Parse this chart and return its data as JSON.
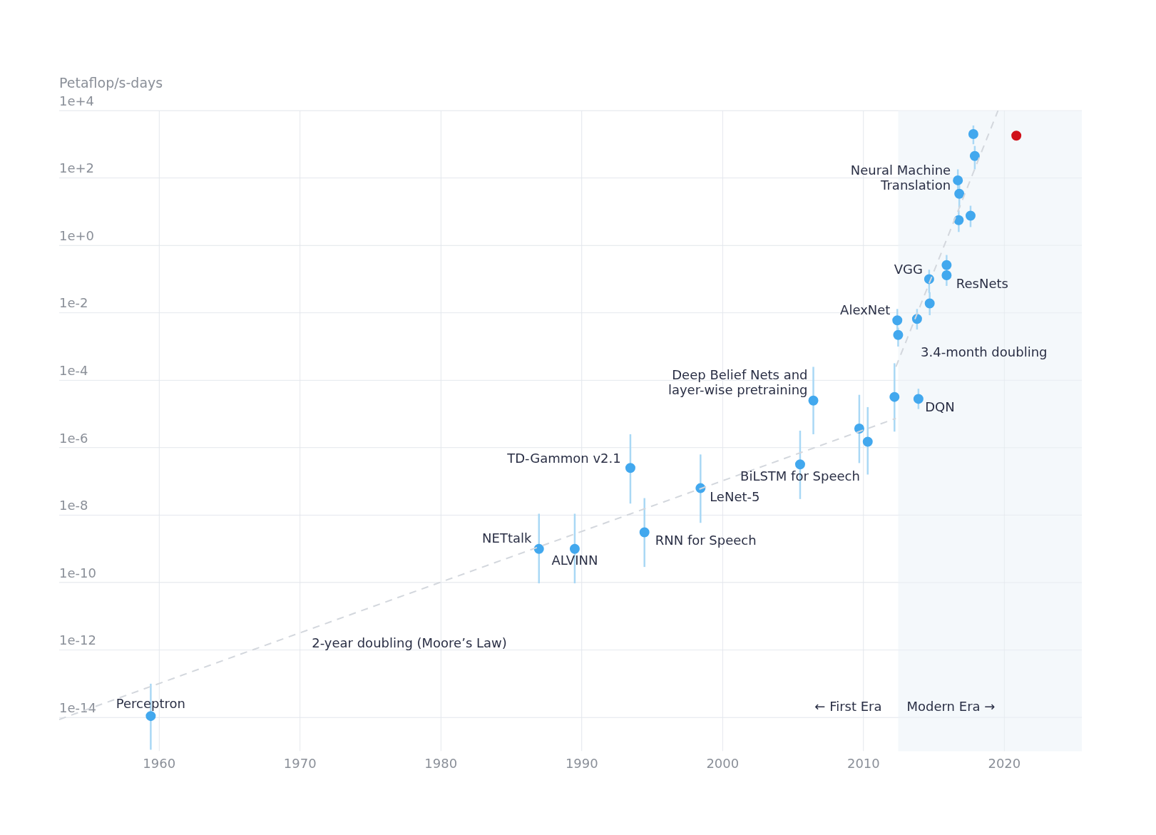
{
  "chart_data": {
    "type": "scatter",
    "ylabel": "Petaflop/s-days",
    "log": "y",
    "grid": true,
    "xlim": [
      1952.9,
      2025.5
    ],
    "xticks": [
      1960,
      1970,
      1980,
      1990,
      2000,
      2010,
      2020
    ],
    "ylim": [
      1e-15,
      10000
    ],
    "yticks": [
      {
        "value": 1e-14,
        "label": "1e-14"
      },
      {
        "value": 1e-12,
        "label": "1e-12"
      },
      {
        "value": 1e-10,
        "label": "1e-10"
      },
      {
        "value": 1e-08,
        "label": "1e-8"
      },
      {
        "value": 1e-06,
        "label": "1e-6"
      },
      {
        "value": 0.0001,
        "label": "1e-4"
      },
      {
        "value": 0.01,
        "label": "1e-2"
      },
      {
        "value": 1,
        "label": "1e+0"
      },
      {
        "value": 100,
        "label": "1e+2"
      },
      {
        "value": 10000,
        "label": "1e+4"
      }
    ],
    "bands": [
      {
        "axis": "x",
        "from": 2012.46,
        "to": 2025.5,
        "color": "#f4f8fb"
      }
    ],
    "series": [
      {
        "type": "line",
        "color": "#d3d7dd",
        "line_style": "dashed",
        "marker": "none",
        "x": [
          1952.9,
          2012.3
        ],
        "values": [
          8.7e-15,
          7.4e-06
        ]
      },
      {
        "type": "line",
        "color": "#d3d7dd",
        "line_style": "dashed",
        "marker": "none",
        "x": [
          2012.3,
          2019.55
        ],
        "values": [
          0.00025,
          10000
        ]
      },
      {
        "type": "scatter",
        "color": "#42a8ee",
        "marker": "circle",
        "x": [
          1959.4,
          1986.96,
          1989.5,
          1993.45,
          1994.45,
          1998.43,
          2005.5,
          2006.44,
          2009.7,
          2010.3,
          2012.2,
          2013.9,
          2012.4,
          2012.46,
          2013.8,
          2014.7,
          2014.66,
          2015.9,
          2015.9,
          2016.76,
          2017.6,
          2016.7,
          2016.8,
          2017.9,
          2017.8
        ],
        "values": [
          1.1e-14,
          1e-09,
          1e-09,
          2.5e-07,
          3.1e-09,
          6.3e-08,
          3.2e-07,
          2.5e-05,
          3.7e-06,
          1.5e-06,
          3.2e-05,
          2.8e-05,
          0.006,
          0.0022,
          0.0066,
          0.019,
          0.1,
          0.26,
          0.13,
          5.6,
          7.6,
          85,
          34,
          450,
          2000
        ],
        "errors": [
          [
            1.1e-15,
            1e-13
          ],
          [
            9.5e-11,
            1.1e-08
          ],
          [
            9.5e-11,
            1.1e-08
          ],
          [
            2.2e-08,
            2.5e-06
          ],
          [
            2.9e-10,
            3.2e-08
          ],
          [
            5.9e-09,
            6.3e-07
          ],
          [
            3e-08,
            3.2e-06
          ],
          [
            2.5e-06,
            0.00025
          ],
          [
            3.5e-07,
            3.7e-05
          ],
          [
            1.6e-07,
            1.6e-05
          ],
          [
            3e-06,
            0.00032
          ],
          [
            1.4e-05,
            5.6e-05
          ],
          [
            0.0028,
            0.013
          ],
          [
            0.001,
            0.0036
          ],
          [
            0.0032,
            0.013
          ],
          [
            0.0085,
            0.041
          ],
          [
            0.039,
            0.19
          ],
          [
            0.26,
            0.52
          ],
          [
            0.063,
            0.23
          ],
          [
            2.5,
            11
          ],
          [
            3.5,
            15
          ],
          [
            44,
            180
          ],
          [
            13,
            66
          ],
          [
            180,
            890
          ],
          [
            1000,
            3600
          ]
        ]
      },
      {
        "type": "scatter",
        "color": "#d0121b",
        "marker": "circle",
        "x": [
          2020.85
        ],
        "values": [
          1800
        ]
      }
    ],
    "annotations": [
      {
        "text": "Perceptron",
        "x": 1959.4,
        "y": 1.1e-14
      },
      {
        "text": "NETtalk",
        "x": 1986.96,
        "y": 1e-09
      },
      {
        "text": "ALVINN",
        "x": 1989.5,
        "y": 1e-09
      },
      {
        "text": "TD-Gammon v2.1",
        "x": 1993.45,
        "y": 2.5e-07
      },
      {
        "text": "RNN for Speech",
        "x": 1994.45,
        "y": 3.1e-09
      },
      {
        "text": "LeNet-5",
        "x": 1998.43,
        "y": 6.3e-08
      },
      {
        "text": "BiLSTM for Speech",
        "x": 2005.5,
        "y": 3.2e-07
      },
      {
        "text": "Deep Belief Nets and\nlayer-wise pretraining",
        "x": 2006.44,
        "y": 2.5e-05
      },
      {
        "text": "DQN",
        "x": 2013.9,
        "y": 2.8e-05
      },
      {
        "text": "AlexNet",
        "x": 2012.4,
        "y": 0.006
      },
      {
        "text": "VGG",
        "x": 2014.66,
        "y": 0.1
      },
      {
        "text": "ResNets",
        "x": 2015.9,
        "y": 0.13
      },
      {
        "text": "Neural Machine\nTranslation",
        "x": 2016.7,
        "y": 85
      },
      {
        "text": "3.4-month doubling",
        "x": 2012.68,
        "y": 0.00063
      },
      "2-year doubling (Moore’s Law)",
      {
        "text": "← First Era",
        "x": 2012.46,
        "y": 1.8e-14
      },
      {
        "text": "Modern Era →",
        "x": 2012.46,
        "y": 1.8e-14
      }
    ]
  }
}
